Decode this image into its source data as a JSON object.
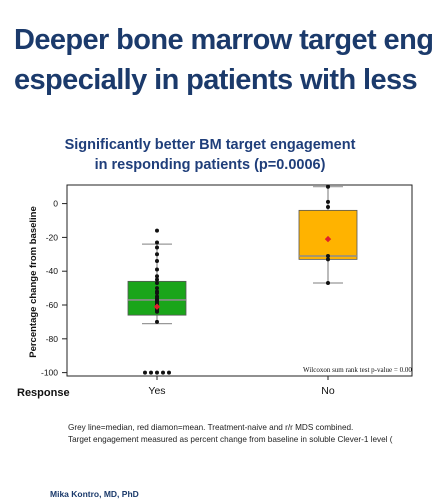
{
  "slide": {
    "title_line1": "Deeper bone marrow target eng",
    "title_line2": "especially in patients with less",
    "chart_heading_line1": "Significantly better BM target engagement",
    "chart_heading_line2": "in responding patients (p=0.0006)",
    "footnote_line1": "Grey line=median, red diamon=mean. Treatment-naive and r/r MDS combined.",
    "footnote_line2": "Target engagement measured as percent change from baseline in soluble Clever-1 level (",
    "author": "Mika Kontro, MD, PhD"
  },
  "chart_data": {
    "type": "box",
    "ylabel": "Percentage change from baseline",
    "xlabel": "Response",
    "categories": [
      "Yes",
      "No"
    ],
    "yticks": [
      "0",
      "-20",
      "-40",
      "-60",
      "-80",
      "-100"
    ],
    "ylim": [
      -102,
      11
    ],
    "grid": false,
    "annotation": "Wilcoxon sum rank test p-value = 0.00",
    "colors": {
      "Yes": "#1aa51a",
      "No": "#ffb300",
      "median": "#8c8c8c",
      "mean": "#e0202a"
    },
    "boxes": [
      {
        "category": "Yes",
        "q1": -66,
        "median": -57,
        "q3": -46,
        "whisker_low": -71,
        "whisker_high": -24,
        "mean": -61,
        "points": [
          -16,
          -23,
          -26,
          -30,
          -34,
          -39,
          -43,
          -45,
          -47,
          -50,
          -52,
          -53,
          -55,
          -56,
          -57,
          -58,
          -59,
          -60,
          -62,
          -63,
          -64,
          -70,
          -100,
          -100,
          -100,
          -100,
          -100
        ]
      },
      {
        "category": "No",
        "q1": -33,
        "median": -31,
        "q3": -4,
        "whisker_low": -47,
        "whisker_high": 10,
        "mean": -21,
        "points": [
          10,
          1,
          -2,
          -31,
          -33,
          -47
        ]
      }
    ]
  }
}
